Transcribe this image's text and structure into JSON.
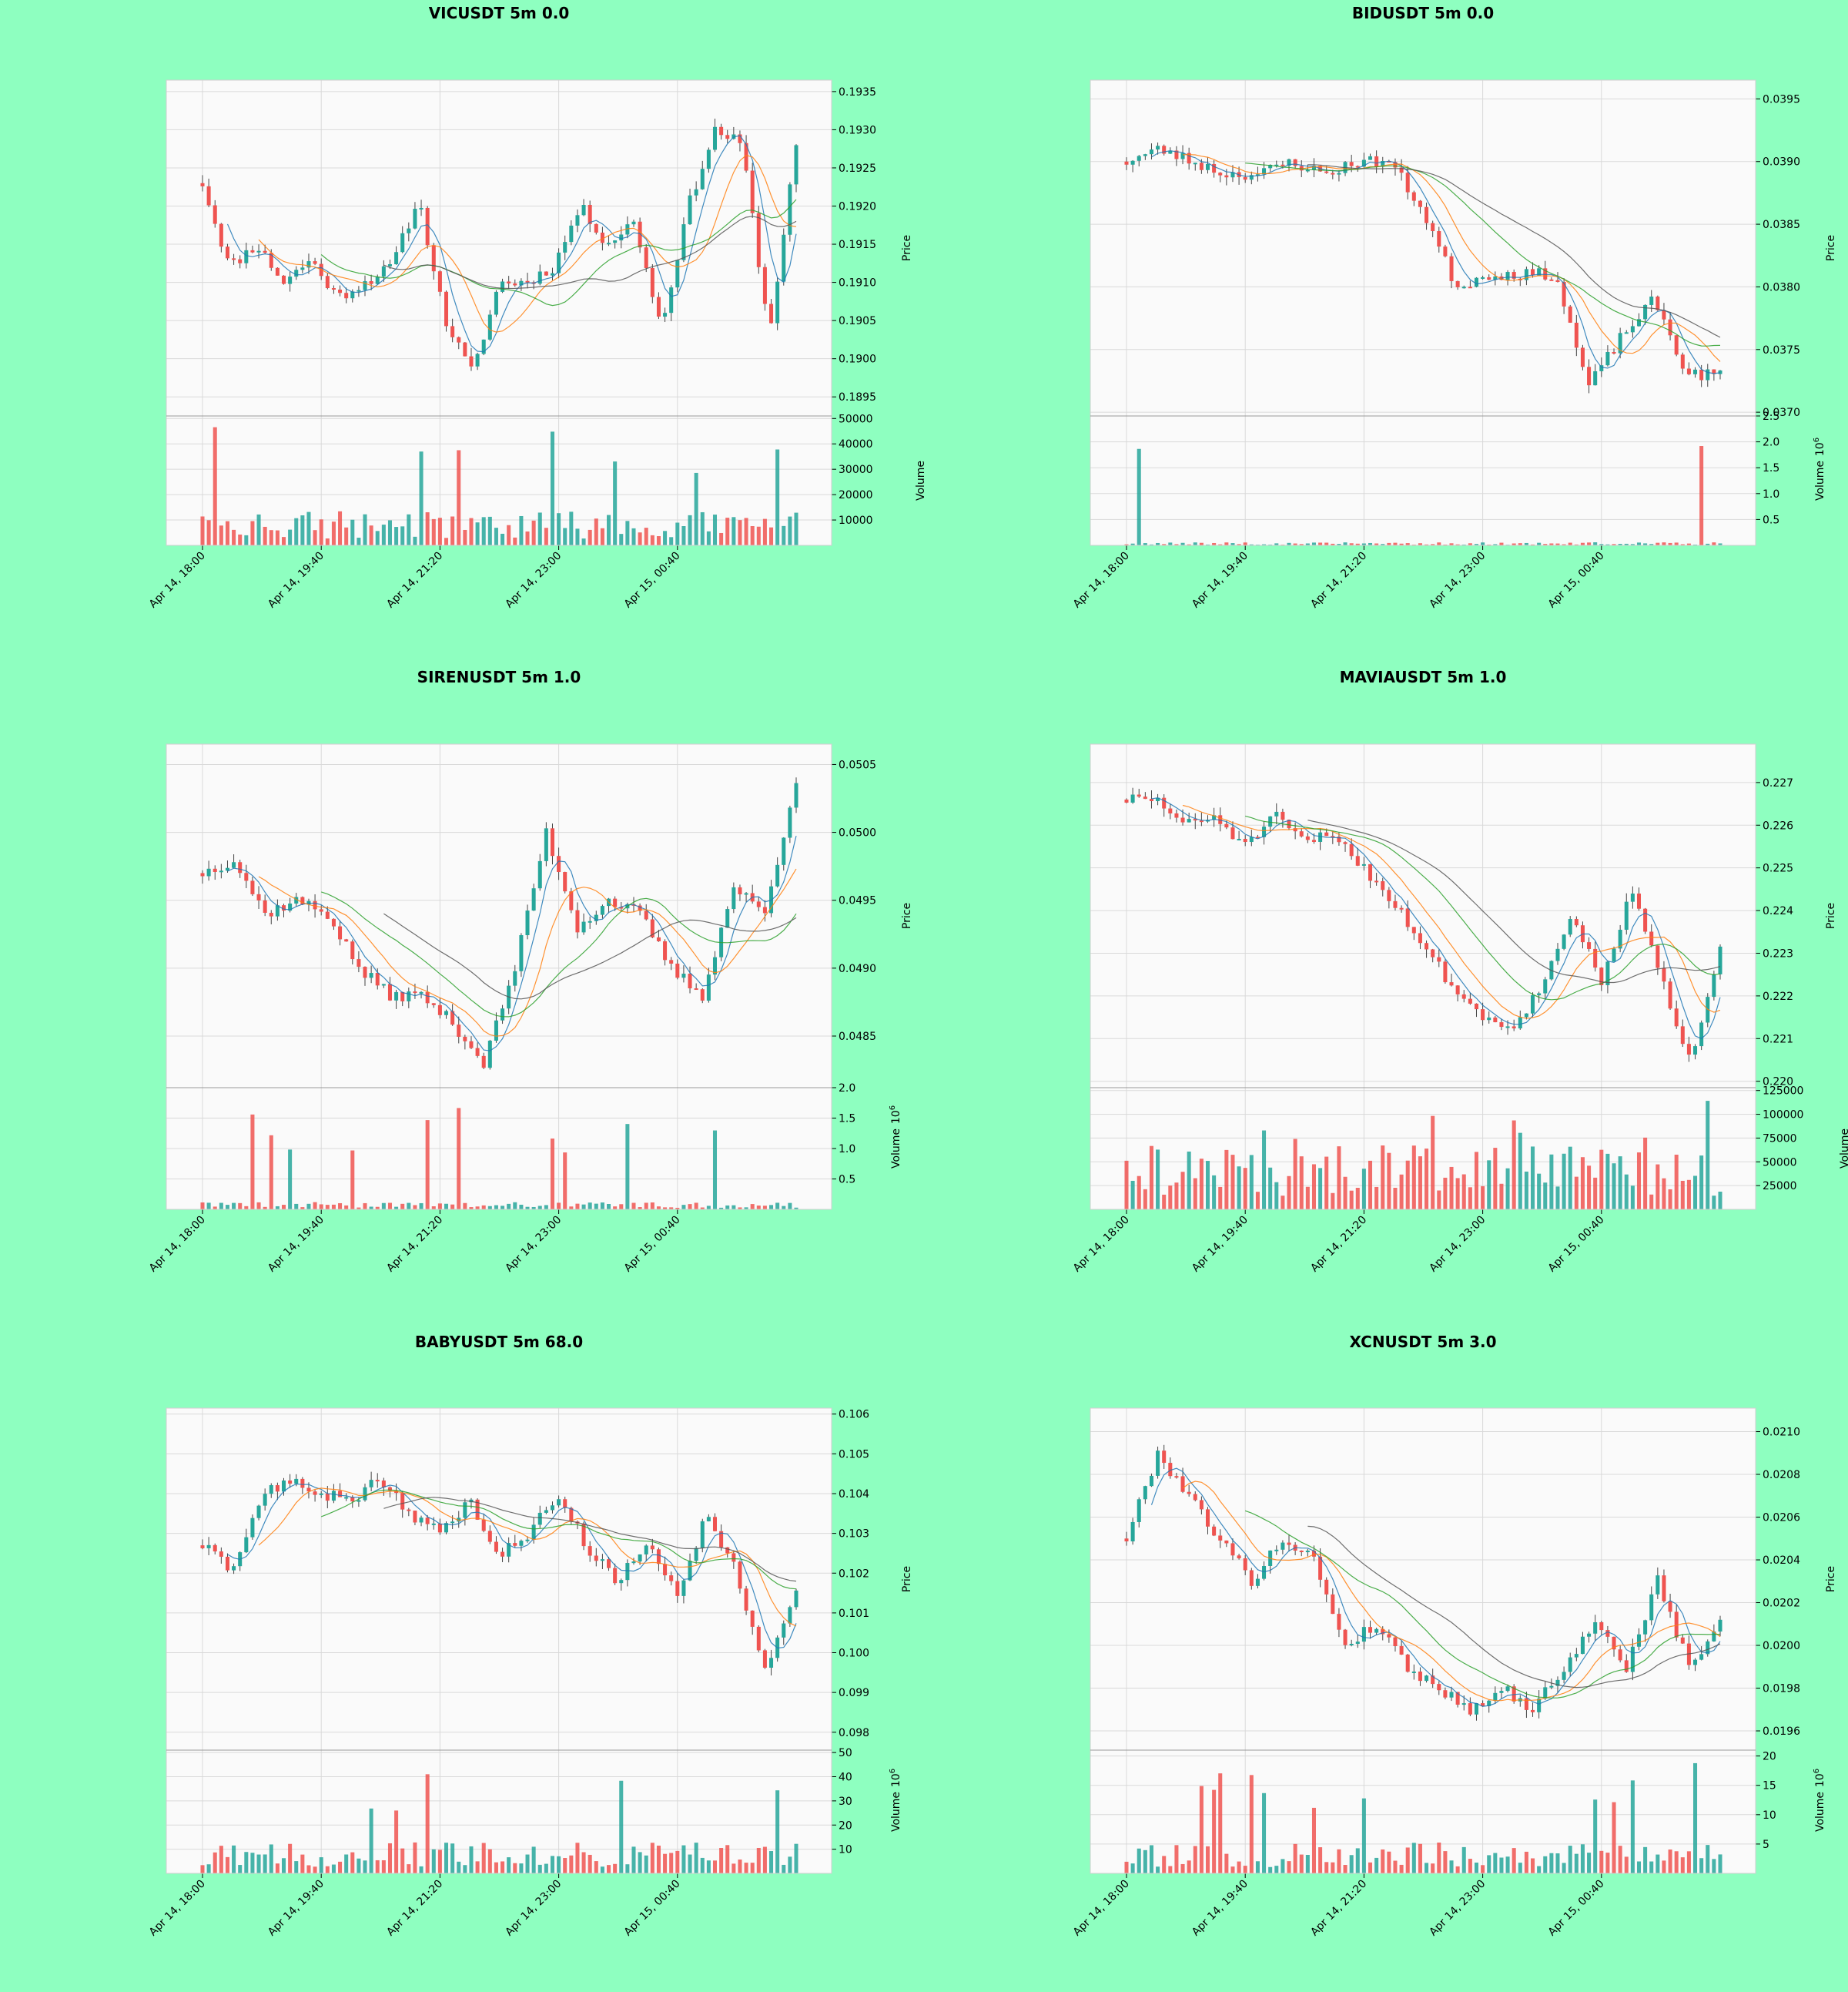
{
  "figure_bg": "#8effc0",
  "colors": {
    "up": "#26a69a",
    "down": "#ef5350",
    "ma_fast": "#1f77b4",
    "ma_mid": "#ff7f0e",
    "ma_slow": "#2ca02c",
    "ma_long": "#555555",
    "panel_bg": "#fafafa",
    "grid": "#d9d9d9"
  },
  "x_axis_labels": [
    "Apr 14, 18:00",
    "Apr 14, 19:40",
    "Apr 14, 21:20",
    "Apr 14, 23:00",
    "Apr 15, 00:40"
  ],
  "chart_data": [
    {
      "type": "candlestick",
      "title": "VICUSDT 5m 0.0",
      "ylabel": "Price",
      "vlabel": "Volume",
      "vexp": "",
      "price_ticks": [
        "0.1935",
        "0.1930",
        "0.1925",
        "0.1920",
        "0.1915",
        "0.1910",
        "0.1905",
        "0.1900",
        "0.1895"
      ],
      "price_ylim": [
        0.18925,
        0.19365
      ],
      "vol_ticks": [
        "10000",
        "20000",
        "30000",
        "40000",
        "50000"
      ],
      "vol_ylim": [
        0,
        51000
      ],
      "seed": 11,
      "start": 0.1923,
      "end": 0.1928,
      "vol_base": 9000,
      "path": [
        0.1923,
        0.1912,
        0.1915,
        0.191,
        0.1913,
        0.1908,
        0.191,
        0.1912,
        0.1921,
        0.1905,
        0.1898,
        0.191,
        0.191,
        0.1912,
        0.192,
        0.1915,
        0.1918,
        0.1904,
        0.192,
        0.193,
        0.1928,
        0.1903,
        0.1928
      ],
      "notes": "OHLC approximated from the rendered candles"
    },
    {
      "type": "candlestick",
      "title": "BIDUSDT 5m 0.0",
      "ylabel": "Price",
      "vlabel": "Volume",
      "vexp": "6",
      "price_ticks": [
        "0.0395",
        "0.0390",
        "0.0385",
        "0.0380",
        "0.0375",
        "0.0370"
      ],
      "price_ylim": [
        0.03697,
        0.03965
      ],
      "vol_ticks": [
        "0.5",
        "1.0",
        "1.5",
        "2.0",
        "2.5"
      ],
      "vol_ylim": [
        0,
        2.5
      ],
      "seed": 23,
      "start": 0.039,
      "end": 0.0373,
      "vol_base": 0.04,
      "path": [
        0.039,
        0.0391,
        0.039,
        0.0389,
        0.0389,
        0.039,
        0.0389,
        0.039,
        0.039,
        0.0386,
        0.038,
        0.0381,
        0.0381,
        0.0381,
        0.0372,
        0.0376,
        0.0379,
        0.0373,
        0.0373
      ],
      "notes": "OHLC approximated from the rendered candles"
    },
    {
      "type": "candlestick",
      "title": "SIRENUSDT 5m 1.0",
      "ylabel": "Price",
      "vlabel": "Volume",
      "vexp": "6",
      "price_ticks": [
        "0.0505",
        "0.0500",
        "0.0495",
        "0.0490",
        "0.0485"
      ],
      "price_ylim": [
        0.04812,
        0.05065
      ],
      "vol_ticks": [
        "0.5",
        "1.0",
        "1.5",
        "2.0"
      ],
      "vol_ylim": [
        0,
        2.0
      ],
      "seed": 37,
      "start": 0.0497,
      "end": 0.0504,
      "vol_base": 0.08,
      "path": [
        0.0497,
        0.0498,
        0.0494,
        0.0495,
        0.0494,
        0.049,
        0.0488,
        0.0488,
        0.0486,
        0.0483,
        0.049,
        0.05,
        0.0493,
        0.0495,
        0.0494,
        0.049,
        0.0488,
        0.0496,
        0.0494,
        0.0504
      ],
      "notes": "OHLC approximated from the rendered candles"
    },
    {
      "type": "candlestick",
      "title": "MAVIAUSDT 5m 1.0",
      "ylabel": "Price",
      "vlabel": "Volume",
      "vexp": "",
      "price_ticks": [
        "0.227",
        "0.226",
        "0.225",
        "0.224",
        "0.223",
        "0.222",
        "0.221",
        "0.220"
      ],
      "price_ylim": [
        0.21985,
        0.2279
      ],
      "vol_ticks": [
        "25000",
        "50000",
        "75000",
        "100000",
        "125000"
      ],
      "vol_ylim": [
        0,
        128000
      ],
      "seed": 51,
      "start": 0.2266,
      "end": 0.2232,
      "vol_base": 45000,
      "path": [
        0.2266,
        0.2266,
        0.226,
        0.2262,
        0.2255,
        0.2262,
        0.2256,
        0.2258,
        0.225,
        0.2242,
        0.2232,
        0.2222,
        0.2215,
        0.2213,
        0.2222,
        0.224,
        0.2222,
        0.2245,
        0.2224,
        0.2205,
        0.2232
      ],
      "notes": "OHLC approximated from the rendered candles"
    },
    {
      "type": "candlestick",
      "title": "BABYUSDT 5m 68.0",
      "ylabel": "Price",
      "vlabel": "Volume",
      "vexp": "6",
      "price_ticks": [
        "0.106",
        "0.105",
        "0.104",
        "0.103",
        "0.102",
        "0.101",
        "0.100",
        "0.099",
        "0.098"
      ],
      "price_ylim": [
        0.09755,
        0.10615
      ],
      "vol_ticks": [
        "10",
        "20",
        "30",
        "40",
        "50"
      ],
      "vol_ylim": [
        0,
        51
      ],
      "seed": 63,
      "start": 0.1027,
      "end": 0.1015,
      "vol_base": 9,
      "path": [
        0.1027,
        0.102,
        0.104,
        0.1043,
        0.104,
        0.1038,
        0.1044,
        0.1035,
        0.103,
        0.1038,
        0.1025,
        0.103,
        0.104,
        0.1026,
        0.1018,
        0.1028,
        0.1015,
        0.1035,
        0.102,
        0.0995,
        0.1015
      ],
      "notes": "OHLC approximated from the rendered candles"
    },
    {
      "type": "candlestick",
      "title": "XCNUSDT 5m 3.0",
      "ylabel": "Price",
      "vlabel": "Volume",
      "vexp": "6",
      "price_ticks": [
        "0.0210",
        "0.0208",
        "0.0206",
        "0.0204",
        "0.0202",
        "0.0200",
        "0.0198",
        "0.0196"
      ],
      "price_ylim": [
        0.01951,
        0.02111
      ],
      "vol_ticks": [
        "5",
        "10",
        "15",
        "20"
      ],
      "vol_ylim": [
        0,
        21
      ],
      "seed": 79,
      "start": 0.0205,
      "end": 0.0201,
      "vol_base": 3.5,
      "path": [
        0.0205,
        0.0209,
        0.0207,
        0.0205,
        0.0203,
        0.0205,
        0.0204,
        0.02,
        0.0201,
        0.0199,
        0.0198,
        0.0197,
        0.0198,
        0.0197,
        0.0199,
        0.0201,
        0.0199,
        0.0203,
        0.0199,
        0.0201
      ],
      "notes": "OHLC approximated from the rendered candles"
    }
  ]
}
